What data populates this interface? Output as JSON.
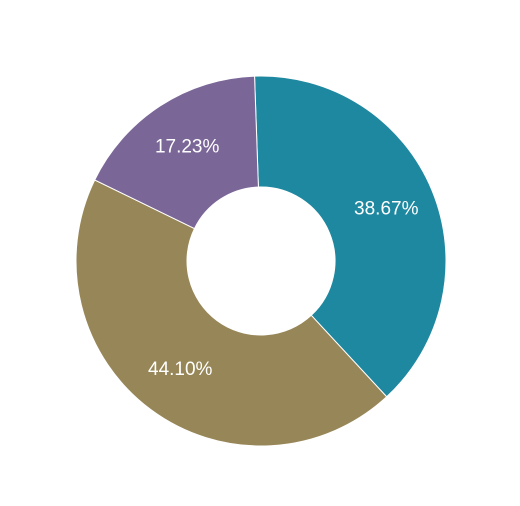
{
  "chart_data": {
    "type": "pie",
    "donut": true,
    "start_angle_deg": -2.0,
    "slices": [
      {
        "value": 38.67,
        "label": "38.67%",
        "color": "#1e88a0"
      },
      {
        "value": 44.1,
        "label": "44.10%",
        "color": "#978657"
      },
      {
        "value": 17.23,
        "label": "17.23%",
        "color": "#7a6697"
      }
    ],
    "legend": false
  }
}
